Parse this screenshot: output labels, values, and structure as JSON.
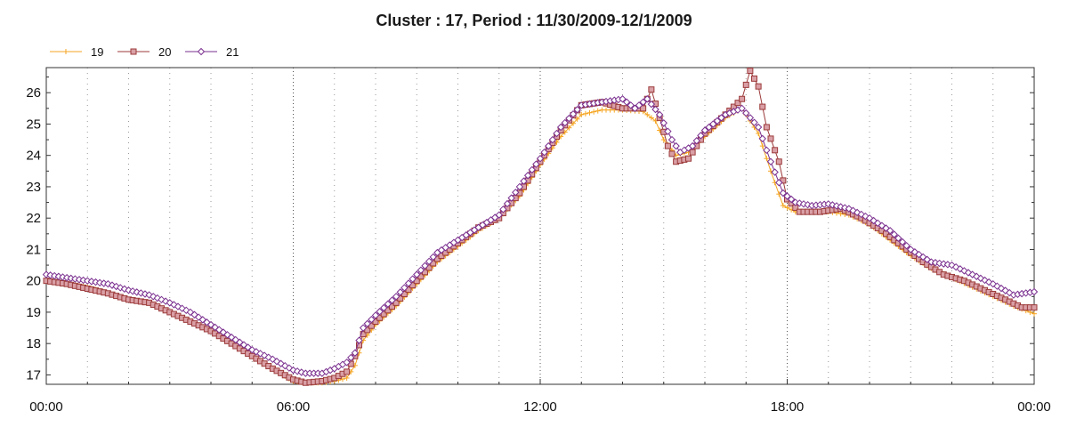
{
  "chart_data": {
    "type": "line",
    "title": "Cluster : 17, Period : 11/30/2009-12/1/2009",
    "xlabel": "",
    "ylabel": "",
    "x_unit": "hours",
    "xlim": [
      0,
      24
    ],
    "ylim": [
      16.7,
      26.8
    ],
    "x_tick_labels": [
      "00:00",
      "06:00",
      "12:00",
      "18:00",
      "00:00"
    ],
    "x_tick_values": [
      0,
      6,
      12,
      18,
      24
    ],
    "y_ticks": [
      17,
      18,
      19,
      20,
      21,
      22,
      23,
      24,
      25,
      26
    ],
    "grid": "vertical dotted at 06:00, 12:00, 18:00",
    "legend_position": "top-left",
    "series": [
      {
        "name": "19",
        "color": "#f5a623",
        "marker": "plus",
        "points": [
          [
            0,
            20.0
          ],
          [
            0.5,
            19.95
          ],
          [
            1,
            19.8
          ],
          [
            1.5,
            19.6
          ],
          [
            2,
            19.4
          ],
          [
            2.5,
            19.3
          ],
          [
            3,
            19.0
          ],
          [
            3.5,
            18.7
          ],
          [
            4,
            18.4
          ],
          [
            4.5,
            18.0
          ],
          [
            5,
            17.6
          ],
          [
            5.5,
            17.2
          ],
          [
            6,
            16.8
          ],
          [
            6.3,
            16.75
          ],
          [
            6.7,
            16.75
          ],
          [
            7,
            16.8
          ],
          [
            7.3,
            16.9
          ],
          [
            7.5,
            17.3
          ],
          [
            7.7,
            18.1
          ],
          [
            8,
            18.6
          ],
          [
            8.5,
            19.2
          ],
          [
            9,
            19.9
          ],
          [
            9.5,
            20.6
          ],
          [
            10,
            21.1
          ],
          [
            10.5,
            21.6
          ],
          [
            11,
            22.0
          ],
          [
            11.5,
            22.7
          ],
          [
            12,
            23.7
          ],
          [
            12.5,
            24.6
          ],
          [
            13,
            25.3
          ],
          [
            13.5,
            25.45
          ],
          [
            14,
            25.45
          ],
          [
            14.5,
            25.4
          ],
          [
            14.8,
            25.1
          ],
          [
            15.0,
            24.5
          ],
          [
            15.3,
            24.0
          ],
          [
            15.6,
            24.1
          ],
          [
            16,
            24.6
          ],
          [
            16.5,
            25.2
          ],
          [
            16.9,
            25.5
          ],
          [
            17.3,
            24.7
          ],
          [
            17.6,
            23.5
          ],
          [
            17.9,
            22.4
          ],
          [
            18.2,
            22.2
          ],
          [
            18.5,
            22.2
          ],
          [
            19,
            22.2
          ],
          [
            19.5,
            22.1
          ],
          [
            20,
            21.8
          ],
          [
            20.5,
            21.3
          ],
          [
            21,
            20.8
          ],
          [
            21.5,
            20.4
          ],
          [
            22,
            20.1
          ],
          [
            22.5,
            19.8
          ],
          [
            23,
            19.5
          ],
          [
            23.5,
            19.2
          ],
          [
            24,
            18.95
          ]
        ]
      },
      {
        "name": "20",
        "color": "#9c3a3a",
        "marker": "square",
        "points": [
          [
            0,
            20.0
          ],
          [
            0.5,
            19.9
          ],
          [
            1,
            19.75
          ],
          [
            1.5,
            19.6
          ],
          [
            2,
            19.4
          ],
          [
            2.5,
            19.3
          ],
          [
            3,
            19.0
          ],
          [
            3.5,
            18.7
          ],
          [
            4,
            18.4
          ],
          [
            4.5,
            18.0
          ],
          [
            5,
            17.6
          ],
          [
            5.5,
            17.2
          ],
          [
            6,
            16.85
          ],
          [
            6.3,
            16.75
          ],
          [
            6.7,
            16.8
          ],
          [
            7,
            16.9
          ],
          [
            7.3,
            17.1
          ],
          [
            7.5,
            17.6
          ],
          [
            7.7,
            18.3
          ],
          [
            8,
            18.7
          ],
          [
            8.5,
            19.3
          ],
          [
            9,
            20.0
          ],
          [
            9.5,
            20.7
          ],
          [
            10,
            21.2
          ],
          [
            10.5,
            21.7
          ],
          [
            11,
            22.0
          ],
          [
            11.5,
            22.8
          ],
          [
            12,
            23.8
          ],
          [
            12.5,
            24.8
          ],
          [
            13,
            25.6
          ],
          [
            13.5,
            25.7
          ],
          [
            14,
            25.5
          ],
          [
            14.5,
            25.5
          ],
          [
            14.7,
            26.1
          ],
          [
            14.9,
            25.2
          ],
          [
            15.1,
            24.3
          ],
          [
            15.3,
            23.8
          ],
          [
            15.6,
            23.9
          ],
          [
            16,
            24.7
          ],
          [
            16.5,
            25.3
          ],
          [
            16.9,
            25.8
          ],
          [
            17.1,
            26.7
          ],
          [
            17.3,
            26.2
          ],
          [
            17.5,
            24.9
          ],
          [
            17.8,
            23.8
          ],
          [
            18.0,
            22.6
          ],
          [
            18.3,
            22.2
          ],
          [
            18.8,
            22.2
          ],
          [
            19.3,
            22.3
          ],
          [
            19.8,
            22.0
          ],
          [
            20.3,
            21.6
          ],
          [
            20.8,
            21.1
          ],
          [
            21.3,
            20.6
          ],
          [
            21.8,
            20.2
          ],
          [
            22.3,
            20.0
          ],
          [
            22.8,
            19.7
          ],
          [
            23.3,
            19.4
          ],
          [
            23.7,
            19.15
          ],
          [
            24,
            19.15
          ]
        ]
      },
      {
        "name": "21",
        "color": "#7a2f8f",
        "marker": "diamond",
        "points": [
          [
            0,
            20.2
          ],
          [
            0.5,
            20.1
          ],
          [
            1,
            20.0
          ],
          [
            1.5,
            19.9
          ],
          [
            2,
            19.7
          ],
          [
            2.5,
            19.55
          ],
          [
            3,
            19.3
          ],
          [
            3.5,
            19.0
          ],
          [
            4,
            18.6
          ],
          [
            4.5,
            18.2
          ],
          [
            5,
            17.8
          ],
          [
            5.5,
            17.5
          ],
          [
            6,
            17.15
          ],
          [
            6.3,
            17.05
          ],
          [
            6.7,
            17.05
          ],
          [
            7,
            17.2
          ],
          [
            7.3,
            17.4
          ],
          [
            7.5,
            17.7
          ],
          [
            7.7,
            18.5
          ],
          [
            8,
            18.9
          ],
          [
            8.5,
            19.5
          ],
          [
            9,
            20.2
          ],
          [
            9.5,
            20.9
          ],
          [
            10,
            21.3
          ],
          [
            10.5,
            21.7
          ],
          [
            11,
            22.1
          ],
          [
            11.5,
            23.0
          ],
          [
            12,
            23.9
          ],
          [
            12.5,
            24.9
          ],
          [
            13,
            25.6
          ],
          [
            13.5,
            25.7
          ],
          [
            14,
            25.8
          ],
          [
            14.3,
            25.5
          ],
          [
            14.6,
            25.8
          ],
          [
            14.9,
            25.3
          ],
          [
            15.2,
            24.5
          ],
          [
            15.4,
            24.1
          ],
          [
            15.7,
            24.3
          ],
          [
            16,
            24.8
          ],
          [
            16.5,
            25.3
          ],
          [
            16.9,
            25.5
          ],
          [
            17.3,
            24.9
          ],
          [
            17.6,
            23.8
          ],
          [
            17.9,
            22.8
          ],
          [
            18.2,
            22.5
          ],
          [
            18.6,
            22.4
          ],
          [
            19,
            22.45
          ],
          [
            19.5,
            22.3
          ],
          [
            20,
            22.0
          ],
          [
            20.5,
            21.6
          ],
          [
            21,
            21.0
          ],
          [
            21.5,
            20.6
          ],
          [
            22,
            20.5
          ],
          [
            22.5,
            20.2
          ],
          [
            23,
            19.9
          ],
          [
            23.5,
            19.55
          ],
          [
            24,
            19.65
          ]
        ]
      }
    ]
  }
}
